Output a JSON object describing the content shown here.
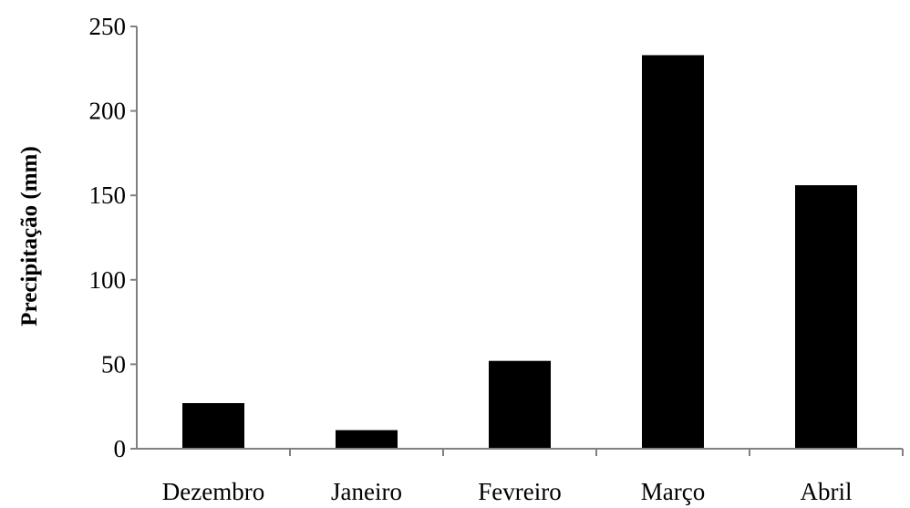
{
  "chart_data": {
    "type": "bar",
    "categories": [
      "Dezembro",
      "Janeiro",
      "Fevreiro",
      "Março",
      "Abril"
    ],
    "values": [
      27,
      11,
      52,
      233,
      156
    ],
    "title": "",
    "xlabel": "",
    "ylabel": "Precipitação (mm)",
    "ylim": [
      0,
      250
    ],
    "yticks": [
      "0",
      "50",
      "100",
      "150",
      "200",
      "250"
    ],
    "grid": false,
    "legend": "none",
    "bar_color": "#000000",
    "axis_color": "#808080"
  }
}
